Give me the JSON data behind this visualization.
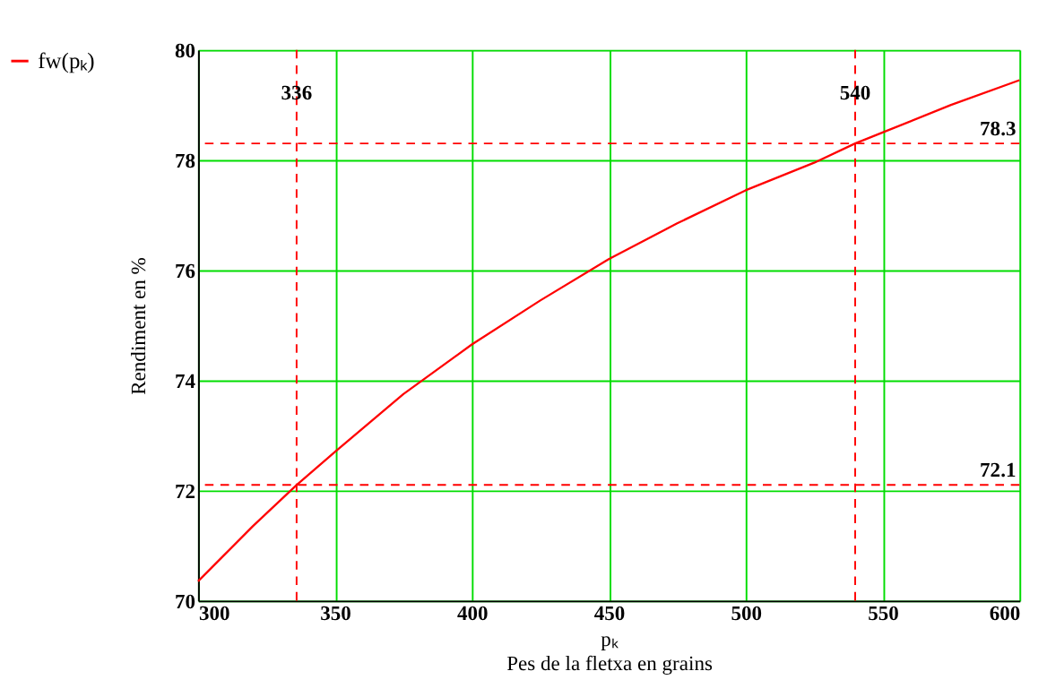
{
  "chart_data": {
    "type": "line",
    "xlabel": "pₖ\nPes de la fletxa en grains",
    "ylabel": "Rendiment en %",
    "x": [
      300,
      310,
      320,
      336,
      350,
      375,
      400,
      425,
      450,
      475,
      500,
      525,
      540,
      550,
      575,
      600
    ],
    "series": [
      {
        "name": "fw(pₖ)",
        "color": "#ff0000",
        "values": [
          70.35,
          70.85,
          71.35,
          72.1,
          72.7,
          73.75,
          74.65,
          75.45,
          76.2,
          76.85,
          77.45,
          77.95,
          78.3,
          78.5,
          79.0,
          79.45
        ]
      }
    ],
    "xlim": [
      300,
      600
    ],
    "xticks": [
      300,
      350,
      400,
      450,
      500,
      550,
      600
    ],
    "ylim": [
      70,
      80
    ],
    "yticks": [
      70,
      72,
      74,
      76,
      78,
      80
    ],
    "ref_lines": [
      {
        "axis": "x",
        "value": 336,
        "label": "336",
        "color": "#ff0000",
        "line_style": "dashed"
      },
      {
        "axis": "x",
        "value": 540,
        "label": "540",
        "color": "#ff0000",
        "line_style": "dashed"
      },
      {
        "axis": "y",
        "value": 78.3,
        "label": "78.3",
        "color": "#ff0000",
        "line_style": "dashed"
      },
      {
        "axis": "y",
        "value": 72.1,
        "label": "72.1",
        "color": "#ff0000",
        "line_style": "dashed"
      }
    ],
    "grid": true,
    "legend": "left",
    "marker": "none",
    "line_style": "solid"
  }
}
